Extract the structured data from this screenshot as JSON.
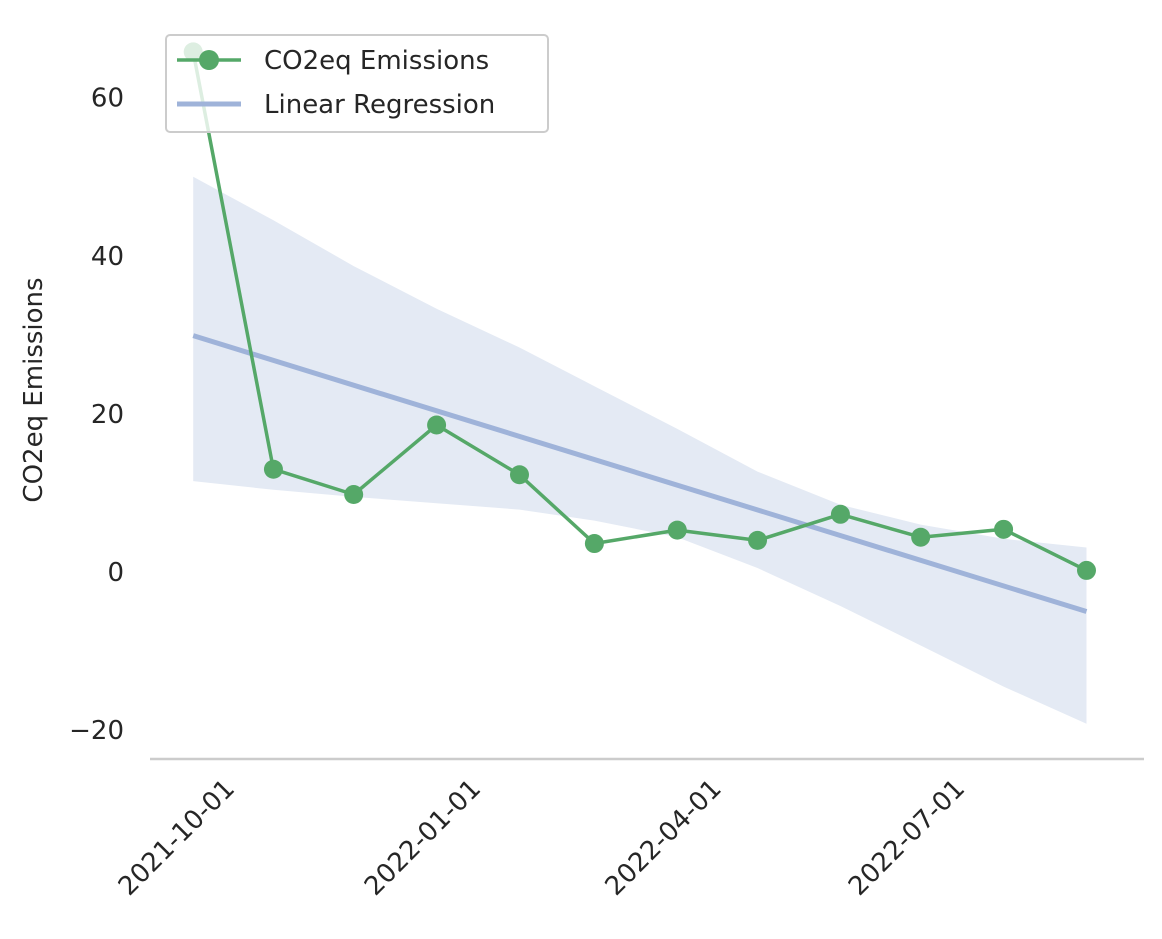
{
  "chart_data": {
    "type": "line",
    "xlabel": "",
    "ylabel": "CO2eq Emissions",
    "x_dates": [
      "2021-09-15",
      "2021-10-15",
      "2021-11-14",
      "2021-12-15",
      "2022-01-15",
      "2022-02-12",
      "2022-03-15",
      "2022-04-14",
      "2022-05-15",
      "2022-06-14",
      "2022-07-15",
      "2022-08-15"
    ],
    "x_tick_labels": [
      "2021-10-01",
      "2022-01-01",
      "2022-04-01",
      "2022-07-01"
    ],
    "y_ticks": [
      -20,
      0,
      20,
      40,
      60
    ],
    "y_tick_labels": [
      "−20",
      "0",
      "20",
      "40",
      "60"
    ],
    "ylim": [
      -23.5,
      67
    ],
    "grid": false,
    "legend_position": "top-left",
    "series": [
      {
        "name": "CO2eq Emissions",
        "color": "#55a868",
        "marker": "circle",
        "values": [
          65.8,
          13.0,
          9.8,
          18.6,
          12.3,
          3.6,
          5.3,
          4.0,
          7.3,
          4.4,
          5.4,
          0.2
        ]
      },
      {
        "name": "Linear Regression",
        "color": "#9fb3d9",
        "start_value": 29.9,
        "end_value": -5.0
      }
    ],
    "confidence_band": {
      "color": "#e4eaf4",
      "lower": [
        11.5,
        10.4,
        9.5,
        8.7,
        7.9,
        6.5,
        4.4,
        0.5,
        -4.3,
        -9.3,
        -14.5,
        -19.2
      ],
      "upper": [
        50.0,
        44.5,
        38.7,
        33.3,
        28.4,
        23.5,
        18.1,
        12.7,
        8.5,
        6.0,
        4.2,
        3.1
      ]
    }
  }
}
